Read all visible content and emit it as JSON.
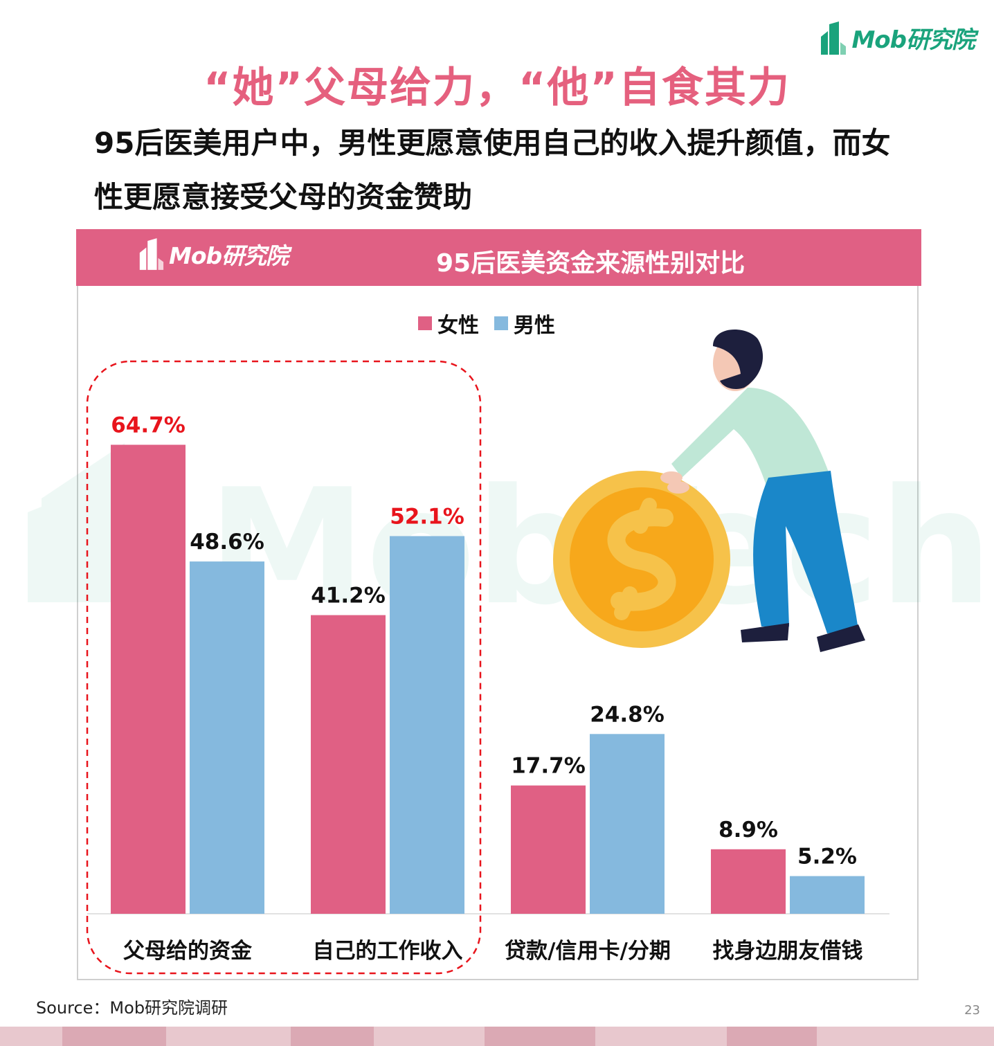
{
  "brand": {
    "logo_text": "Mob研究院",
    "accent": "#e5607e",
    "logo_color": "#1aa37c"
  },
  "header": {
    "title": "“她”父母给力，“他”自食其力",
    "subtitle": "95后医美用户中，男性更愿意使用自己的收入提升颜值，而女性更愿意接受父母的资金赞助"
  },
  "panel": {
    "title": "95后医美资金来源性别对比",
    "logo_text": "Mob研究院",
    "header_color": "#e06084"
  },
  "chart_data": {
    "type": "bar",
    "title": "95后医美资金来源性别对比",
    "categories": [
      "父母给的资金",
      "自己的工作收入",
      "贷款/信用卡/分期",
      "找身边朋友借钱"
    ],
    "series": [
      {
        "name": "女性",
        "values": [
          64.7,
          41.2,
          17.7,
          8.9
        ],
        "labels": [
          "64.7%",
          "41.2%",
          "17.7%",
          "8.9%"
        ],
        "color": "#e06084"
      },
      {
        "name": "男性",
        "values": [
          48.6,
          52.1,
          24.8,
          5.2
        ],
        "labels": [
          "48.6%",
          "52.1%",
          "24.8%",
          "5.2%"
        ],
        "color": "#85b9de"
      }
    ],
    "highlighted_labels": [
      "64.7%",
      "52.1%"
    ],
    "highlight_color": "#e8141c",
    "highlighted_categories": [
      "父母给的资金",
      "自己的工作收入"
    ],
    "ylim": [
      0,
      70
    ],
    "legend": "top-center",
    "grid": false
  },
  "footer": {
    "source": "Source：Mob研究院调研",
    "page": "23"
  }
}
